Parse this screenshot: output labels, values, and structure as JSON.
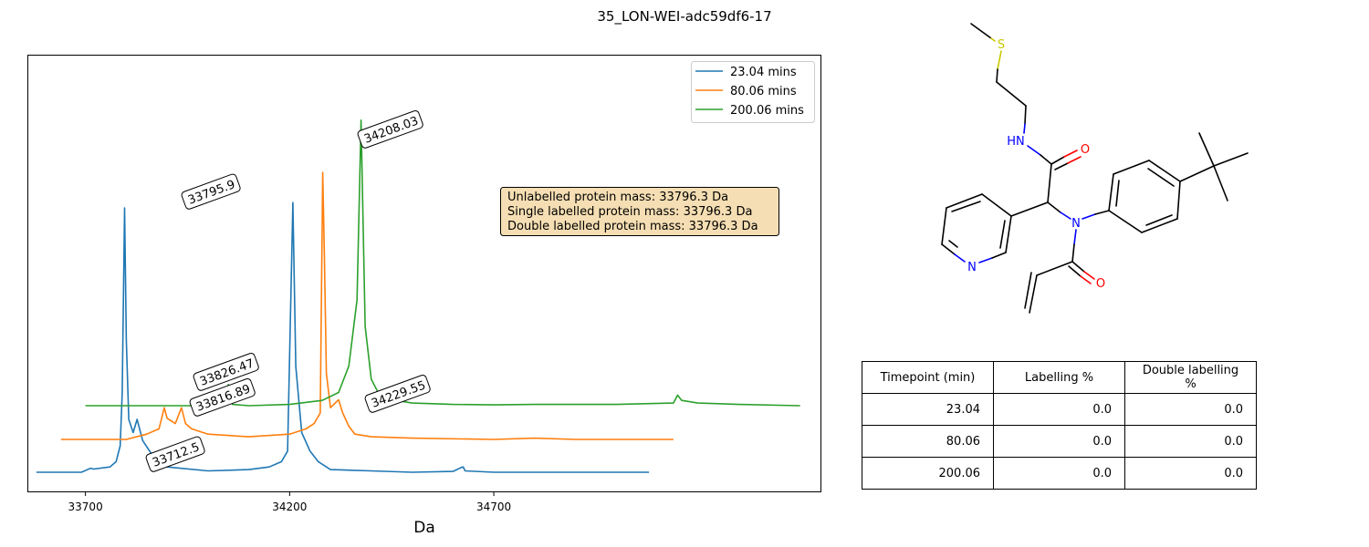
{
  "figure_title": "35_LON-WEI-adc59df6-17",
  "chart_data": {
    "type": "line",
    "xlabel": "Da",
    "ylabel": "",
    "xlim": [
      33560,
      35500
    ],
    "x_ticks": [
      "33700",
      "34200",
      "34700"
    ],
    "legend_position": "top-right",
    "series": [
      {
        "name": "23.04 mins",
        "color": "#1f77b4",
        "offset_label": "base",
        "x": [
          33580,
          33690,
          33698,
          33702,
          33712.5,
          33720,
          33760,
          33775,
          33785,
          33790,
          33795.9,
          33800,
          33806,
          33816.89,
          33826.47,
          33840,
          33870,
          33900,
          34000,
          34100,
          34150,
          34180,
          34195,
          34208.03,
          34215,
          34229.55,
          34250,
          34270,
          34300,
          34400,
          34500,
          34600,
          34620,
          34625,
          34630,
          34700,
          35080
        ],
        "y": [
          0,
          0,
          0.5,
          0.8,
          1.5,
          1.2,
          2,
          4,
          10,
          30,
          100,
          50,
          20,
          15,
          20,
          12,
          5,
          2,
          0.5,
          1,
          2,
          4,
          8,
          102,
          40,
          15,
          8,
          4,
          1,
          0.5,
          0,
          0.3,
          1.8,
          2,
          0.5,
          0,
          0
        ]
      },
      {
        "name": "80.06 mins",
        "color": "#ff7f0e",
        "offset_label": "mid",
        "x": [
          33640,
          33800,
          33850,
          33880,
          33893,
          33900,
          33920,
          33935,
          33945,
          33960,
          34000,
          34100,
          34200,
          34240,
          34260,
          34275,
          34281,
          34285,
          34290,
          34300,
          34320,
          34330,
          34345,
          34360,
          34400,
          34500,
          34700,
          34800,
          34900,
          35140
        ],
        "y": [
          0,
          0,
          2,
          4,
          12,
          8,
          6,
          12,
          6,
          4,
          2,
          1,
          2,
          4,
          6,
          10,
          101,
          70,
          25,
          12,
          15,
          10,
          5,
          2,
          1,
          0.5,
          0,
          0.5,
          0,
          0
        ]
      },
      {
        "name": "200.06 mins",
        "color": "#2ca02c",
        "offset_label": "top",
        "x": [
          33700,
          33980,
          34000,
          34010,
          34040,
          34050,
          34060,
          34100,
          34200,
          34280,
          34320,
          34345,
          34365,
          34375,
          34385,
          34400,
          34420,
          34460,
          34500,
          34600,
          34700,
          34800,
          35000,
          35140,
          35150,
          35160,
          35200,
          35300,
          35450
        ],
        "y": [
          0,
          0,
          2,
          0.5,
          1,
          8,
          0.5,
          0,
          0.5,
          2,
          5,
          15,
          40,
          108,
          30,
          10,
          4,
          2,
          1,
          0.5,
          0.3,
          0.5,
          0.5,
          1,
          4,
          2,
          1,
          0.5,
          0
        ]
      }
    ],
    "peak_labels": [
      "33795.9",
      "34208.03",
      "33826.47",
      "33816.89",
      "34229.55",
      "33712.5"
    ],
    "info_box": [
      "Unlabelled protein mass: 33796.3 Da",
      "Single labelled protein mass: 33796.3 Da",
      "Double labelled protein mass: 33796.3 Da"
    ]
  },
  "molecule": {
    "atom_labels": [
      "S",
      "HN",
      "O",
      "N",
      "N",
      "O"
    ],
    "colors": {
      "S": "#c8c800",
      "N": "#0000ff",
      "O": "#ff0000",
      "C": "#000000"
    }
  },
  "table": {
    "headers": [
      "Timepoint (min)",
      "Labelling %",
      "Double labelling %"
    ],
    "rows": [
      [
        "23.04",
        "0.0",
        "0.0"
      ],
      [
        "80.06",
        "0.0",
        "0.0"
      ],
      [
        "200.06",
        "0.0",
        "0.0"
      ]
    ]
  }
}
